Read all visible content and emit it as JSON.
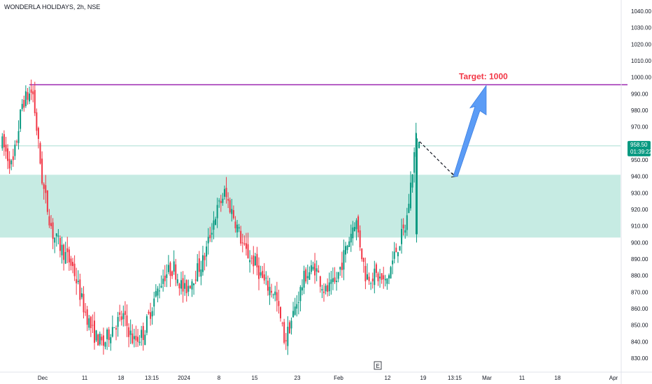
{
  "header": {
    "symbol_title": "WONDERLA HOLIDAYS, 2h, NSE"
  },
  "colors": {
    "up": "#089981",
    "down": "#f23645",
    "zone": "#c6ebe3",
    "target_line": "#9c27b0",
    "arrow": "#5b9cf6",
    "current_line": "#a8ddd2"
  },
  "chart_data": {
    "type": "candlestick",
    "y_ticks": [
      830,
      840,
      850,
      860,
      870,
      880,
      890,
      900,
      910,
      920,
      930,
      940,
      950,
      960,
      970,
      980,
      990,
      1000,
      1010,
      1020,
      1030,
      1040
    ],
    "y_tick_labels": [
      "830.00",
      "840.00",
      "850.00",
      "860.00",
      "870.00",
      "880.00",
      "890.00",
      "900.00",
      "910.00",
      "920.00",
      "930.00",
      "940.00",
      "950.00",
      "960.00",
      "970.00",
      "980.00",
      "990.00",
      "1000.00",
      "1010.00",
      "1020.00",
      "1030.00",
      "1040.00"
    ],
    "x_labels": [
      "Dec",
      "11",
      "18",
      "13:15",
      "2024",
      "8",
      "15",
      "23",
      "Feb",
      "12",
      "19",
      "13:15",
      "Mar",
      "11",
      "18",
      "Apr"
    ],
    "ylim": [
      824,
      1044
    ],
    "current_price": {
      "value": 958.5,
      "label": "958.50",
      "countdown": "01:39:22"
    },
    "target": {
      "value": 995.5,
      "label": "Target: 1000"
    },
    "zone": {
      "low": 903,
      "high": 941
    },
    "earnings_marker": "E",
    "projection": {
      "pullback_to": 940,
      "target_to": 995
    },
    "key_closes": [
      960,
      945,
      985,
      992,
      935,
      905,
      895,
      885,
      862,
      845,
      838,
      850,
      855,
      840,
      845,
      865,
      880,
      885,
      870,
      880,
      890,
      915,
      930,
      915,
      895,
      888,
      875,
      870,
      840,
      860,
      880,
      885,
      870,
      875,
      895,
      915,
      880,
      880,
      875,
      895,
      910,
      963,
      958.5
    ]
  }
}
